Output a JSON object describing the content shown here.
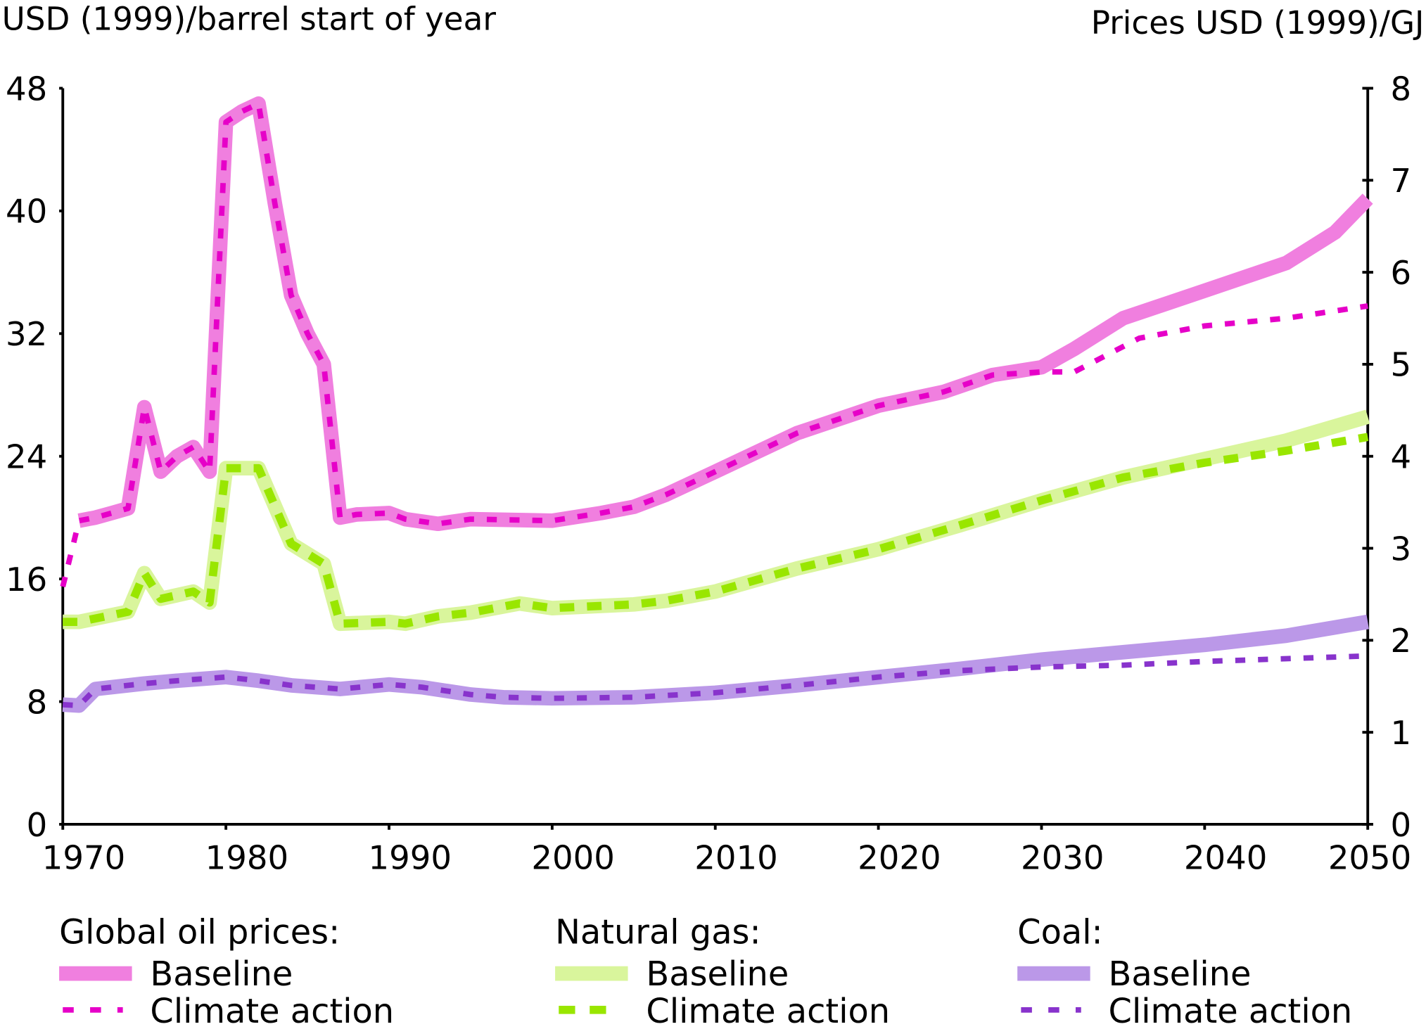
{
  "chart_data": {
    "type": "line",
    "left_axis": {
      "label": "USD (1999)/barrel start of year",
      "range": [
        0,
        48
      ],
      "ticks": [
        "0",
        "8",
        "16",
        "24",
        "32",
        "40",
        "48"
      ]
    },
    "right_axis": {
      "label": "Prices USD (1999)/GJ",
      "range": [
        0,
        8
      ],
      "ticks": [
        "0",
        "1",
        "2",
        "3",
        "4",
        "5",
        "6",
        "7",
        "8"
      ]
    },
    "x_axis": {
      "range": [
        1970,
        2050
      ],
      "ticks": [
        "1970",
        "1980",
        "1990",
        "2000",
        "2010",
        "2020",
        "2030",
        "2040",
        "2050"
      ]
    },
    "grid": false,
    "legend_position": "bottom",
    "legend_groups": [
      {
        "title": "Global oil prices:",
        "baseline_label": "Baseline",
        "climate_label": "Climate action"
      },
      {
        "title": "Natural gas:",
        "baseline_label": "Baseline",
        "climate_label": "Climate action"
      },
      {
        "title": "Coal:",
        "baseline_label": "Baseline",
        "climate_label": "Climate action"
      }
    ],
    "series": [
      {
        "name": "Global oil prices - Baseline",
        "axis": "left",
        "style": "solid",
        "color": "#f07fdf",
        "points": [
          [
            1971,
            19.8
          ],
          [
            1972,
            20
          ],
          [
            1973,
            20.3
          ],
          [
            1974,
            20.6
          ],
          [
            1975,
            27.2
          ],
          [
            1976,
            23
          ],
          [
            1977,
            24
          ],
          [
            1978,
            24.6
          ],
          [
            1979,
            23
          ],
          [
            1980,
            45.8
          ],
          [
            1981,
            46.5
          ],
          [
            1982,
            47
          ],
          [
            1983,
            40.5
          ],
          [
            1984,
            34.5
          ],
          [
            1985,
            32
          ],
          [
            1986,
            30
          ],
          [
            1987,
            20
          ],
          [
            1988,
            20.2
          ],
          [
            1990,
            20.3
          ],
          [
            1991,
            19.9
          ],
          [
            1993,
            19.6
          ],
          [
            1995,
            19.9
          ],
          [
            2000,
            19.8
          ],
          [
            2003,
            20.3
          ],
          [
            2005,
            20.7
          ],
          [
            2007,
            21.5
          ],
          [
            2010,
            23
          ],
          [
            2015,
            25.5
          ],
          [
            2020,
            27.3
          ],
          [
            2024,
            28.2
          ],
          [
            2027,
            29.3
          ],
          [
            2030,
            29.8
          ],
          [
            2032,
            31
          ],
          [
            2035,
            33
          ],
          [
            2040,
            34.8
          ],
          [
            2045,
            36.6
          ],
          [
            2048,
            38.6
          ],
          [
            2050,
            40.8
          ]
        ]
      },
      {
        "name": "Global oil prices - Climate action",
        "axis": "left",
        "style": "dashed",
        "color": "#e600c8",
        "points": [
          [
            1970,
            15.5
          ],
          [
            1971,
            19.8
          ],
          [
            1972,
            20
          ],
          [
            1973,
            20.3
          ],
          [
            1974,
            20.6
          ],
          [
            1975,
            27.2
          ],
          [
            1976,
            23
          ],
          [
            1977,
            24
          ],
          [
            1978,
            24.6
          ],
          [
            1979,
            23
          ],
          [
            1980,
            45.8
          ],
          [
            1981,
            46.5
          ],
          [
            1982,
            47
          ],
          [
            1983,
            40.5
          ],
          [
            1984,
            34.5
          ],
          [
            1985,
            32
          ],
          [
            1986,
            30
          ],
          [
            1987,
            20
          ],
          [
            1988,
            20.2
          ],
          [
            1990,
            20.3
          ],
          [
            1991,
            19.9
          ],
          [
            1993,
            19.6
          ],
          [
            1995,
            19.9
          ],
          [
            2000,
            19.8
          ],
          [
            2003,
            20.3
          ],
          [
            2005,
            20.7
          ],
          [
            2007,
            21.5
          ],
          [
            2010,
            23
          ],
          [
            2015,
            25.5
          ],
          [
            2020,
            27.3
          ],
          [
            2024,
            28.2
          ],
          [
            2027,
            29.3
          ],
          [
            2030,
            29.5
          ],
          [
            2032,
            29.5
          ],
          [
            2036,
            31.7
          ],
          [
            2040,
            32.5
          ],
          [
            2045,
            33
          ],
          [
            2050,
            33.8
          ]
        ]
      },
      {
        "name": "Natural gas - Baseline",
        "axis": "right",
        "style": "solid",
        "color": "#d9f59c",
        "points": [
          [
            1970,
            2.2
          ],
          [
            1971,
            2.2
          ],
          [
            1974,
            2.31
          ],
          [
            1975,
            2.73
          ],
          [
            1976,
            2.45
          ],
          [
            1978,
            2.53
          ],
          [
            1979,
            2.41
          ],
          [
            1980,
            3.87
          ],
          [
            1982,
            3.87
          ],
          [
            1984,
            3.05
          ],
          [
            1986,
            2.83
          ],
          [
            1987,
            2.18
          ],
          [
            1990,
            2.2
          ],
          [
            1991,
            2.18
          ],
          [
            1993,
            2.26
          ],
          [
            1995,
            2.3
          ],
          [
            1998,
            2.4
          ],
          [
            2000,
            2.35
          ],
          [
            2005,
            2.39
          ],
          [
            2007,
            2.43
          ],
          [
            2010,
            2.53
          ],
          [
            2015,
            2.78
          ],
          [
            2020,
            2.99
          ],
          [
            2025,
            3.25
          ],
          [
            2030,
            3.52
          ],
          [
            2035,
            3.77
          ],
          [
            2040,
            3.97
          ],
          [
            2045,
            4.17
          ],
          [
            2050,
            4.43
          ]
        ]
      },
      {
        "name": "Natural gas - Climate action",
        "axis": "right",
        "style": "dashed",
        "color": "#99e600",
        "points": [
          [
            1970,
            2.2
          ],
          [
            1971,
            2.2
          ],
          [
            1974,
            2.31
          ],
          [
            1975,
            2.73
          ],
          [
            1976,
            2.45
          ],
          [
            1978,
            2.53
          ],
          [
            1979,
            2.41
          ],
          [
            1980,
            3.87
          ],
          [
            1982,
            3.87
          ],
          [
            1984,
            3.05
          ],
          [
            1986,
            2.83
          ],
          [
            1987,
            2.18
          ],
          [
            1990,
            2.2
          ],
          [
            1991,
            2.18
          ],
          [
            1993,
            2.26
          ],
          [
            1995,
            2.3
          ],
          [
            1998,
            2.4
          ],
          [
            2000,
            2.35
          ],
          [
            2005,
            2.39
          ],
          [
            2007,
            2.43
          ],
          [
            2010,
            2.53
          ],
          [
            2015,
            2.78
          ],
          [
            2020,
            2.99
          ],
          [
            2025,
            3.25
          ],
          [
            2030,
            3.52
          ],
          [
            2035,
            3.77
          ],
          [
            2040,
            3.93
          ],
          [
            2045,
            4.06
          ],
          [
            2050,
            4.21
          ]
        ]
      },
      {
        "name": "Coal - Baseline",
        "axis": "right",
        "style": "solid",
        "color": "#bb98e8",
        "points": [
          [
            1970,
            1.3
          ],
          [
            1971,
            1.29
          ],
          [
            1972,
            1.47
          ],
          [
            1975,
            1.53
          ],
          [
            1977,
            1.56
          ],
          [
            1980,
            1.6
          ],
          [
            1982,
            1.56
          ],
          [
            1984,
            1.51
          ],
          [
            1987,
            1.47
          ],
          [
            1990,
            1.52
          ],
          [
            1992,
            1.49
          ],
          [
            1995,
            1.41
          ],
          [
            1997,
            1.38
          ],
          [
            2000,
            1.37
          ],
          [
            2005,
            1.38
          ],
          [
            2010,
            1.43
          ],
          [
            2015,
            1.51
          ],
          [
            2020,
            1.6
          ],
          [
            2025,
            1.69
          ],
          [
            2030,
            1.79
          ],
          [
            2035,
            1.87
          ],
          [
            2040,
            1.95
          ],
          [
            2045,
            2.05
          ],
          [
            2050,
            2.2
          ]
        ]
      },
      {
        "name": "Coal - Climate action",
        "axis": "right",
        "style": "dashed",
        "color": "#8833cc",
        "points": [
          [
            1970,
            1.3
          ],
          [
            1971,
            1.29
          ],
          [
            1972,
            1.47
          ],
          [
            1975,
            1.53
          ],
          [
            1977,
            1.56
          ],
          [
            1980,
            1.6
          ],
          [
            1982,
            1.56
          ],
          [
            1984,
            1.51
          ],
          [
            1987,
            1.47
          ],
          [
            1990,
            1.52
          ],
          [
            1992,
            1.49
          ],
          [
            1995,
            1.41
          ],
          [
            1997,
            1.38
          ],
          [
            2000,
            1.37
          ],
          [
            2005,
            1.38
          ],
          [
            2010,
            1.43
          ],
          [
            2015,
            1.51
          ],
          [
            2020,
            1.6
          ],
          [
            2025,
            1.67
          ],
          [
            2030,
            1.71
          ],
          [
            2035,
            1.73
          ],
          [
            2040,
            1.77
          ],
          [
            2045,
            1.8
          ],
          [
            2050,
            1.83
          ]
        ]
      }
    ]
  }
}
